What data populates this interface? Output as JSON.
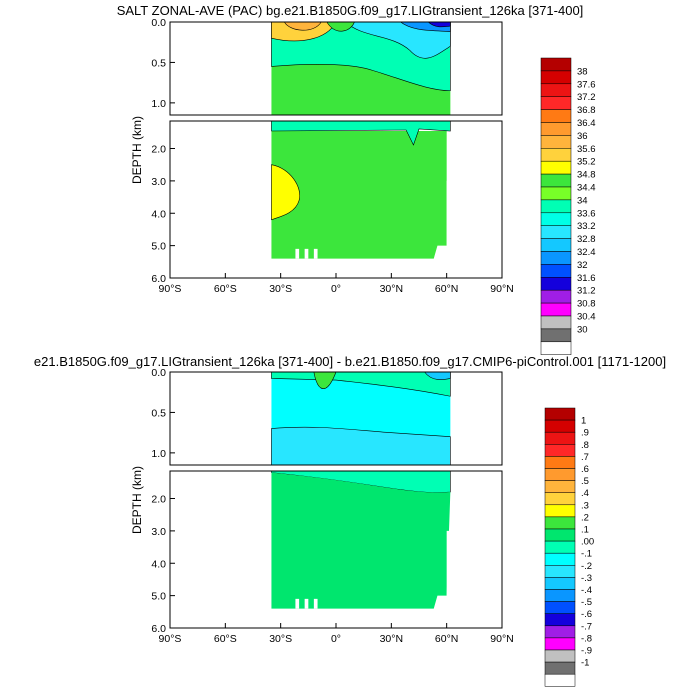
{
  "chart_data": [
    {
      "type": "contour",
      "title": "SALT ZONAL-AVE (PAC) bg.e21.B1850G.f09_g17.LIGtransient_126ka [371-400]",
      "ylabel": "DEPTH (km)",
      "x_ticks": [
        "90°S",
        "60°S",
        "30°S",
        "0°",
        "30°N",
        "60°N",
        "90°N"
      ],
      "y_ticks_upper": [
        "0.0",
        "0.5",
        "1.0"
      ],
      "y_ticks_lower": [
        "2.0",
        "3.0",
        "4.0",
        "5.0",
        "6.0"
      ],
      "xlim": [
        -90,
        90
      ],
      "ylim_km": [
        0,
        6
      ],
      "colorbar_labels": [
        "38",
        "37.6",
        "37.2",
        "36.8",
        "36.4",
        "36",
        "35.6",
        "35.2",
        "34.8",
        "34.4",
        "34",
        "33.6",
        "33.2",
        "32.8",
        "32.4",
        "32",
        "31.6",
        "31.2",
        "30.8",
        "30.4",
        "30"
      ],
      "colorbar_colors": [
        "#b40000",
        "#d40000",
        "#ec1414",
        "#ff2828",
        "#ff7a14",
        "#ff9a2e",
        "#ffb43c",
        "#ffd23c",
        "#ffff00",
        "#3ce63c",
        "#78ff28",
        "#00ffb4",
        "#00ffe6",
        "#28e6ff",
        "#14c8ff",
        "#0a96ff",
        "#0050ff",
        "#1400dc",
        "#a01ee6",
        "#ff00ff",
        "#c0c0c0",
        "#707070",
        "#ffffff"
      ]
    },
    {
      "type": "contour",
      "title": "e21.B1850G.f09_g17.LIGtransient_126ka [371-400] - b.e21.B1850.f09_g17.CMIP6-piControl.001 [1171-1200]",
      "ylabel": "DEPTH (km)",
      "x_ticks": [
        "90°S",
        "60°S",
        "30°S",
        "0°",
        "30°N",
        "60°N",
        "90°N"
      ],
      "y_ticks_upper": [
        "0.0",
        "0.5",
        "1.0"
      ],
      "y_ticks_lower": [
        "2.0",
        "3.0",
        "4.0",
        "5.0",
        "6.0"
      ],
      "xlim": [
        -90,
        90
      ],
      "ylim_km": [
        0,
        6
      ],
      "colorbar_labels": [
        "1",
        ".9",
        ".8",
        ".7",
        ".6",
        ".5",
        ".4",
        ".3",
        ".2",
        ".1",
        ".00",
        "-.1",
        "-.2",
        "-.3",
        "-.4",
        "-.5",
        "-.6",
        "-.7",
        "-.8",
        "-.9",
        "-1"
      ],
      "colorbar_colors": [
        "#b40000",
        "#d40000",
        "#ec1414",
        "#ff2828",
        "#ff7a14",
        "#ff9a2e",
        "#ffb43c",
        "#ffd23c",
        "#ffff00",
        "#3ce63c",
        "#00e66e",
        "#00ffb4",
        "#00ffff",
        "#28e6ff",
        "#14c8ff",
        "#0a96ff",
        "#0050ff",
        "#1400dc",
        "#a01ee6",
        "#ff00ff",
        "#c0c0c0",
        "#707070",
        "#ffffff"
      ]
    }
  ]
}
